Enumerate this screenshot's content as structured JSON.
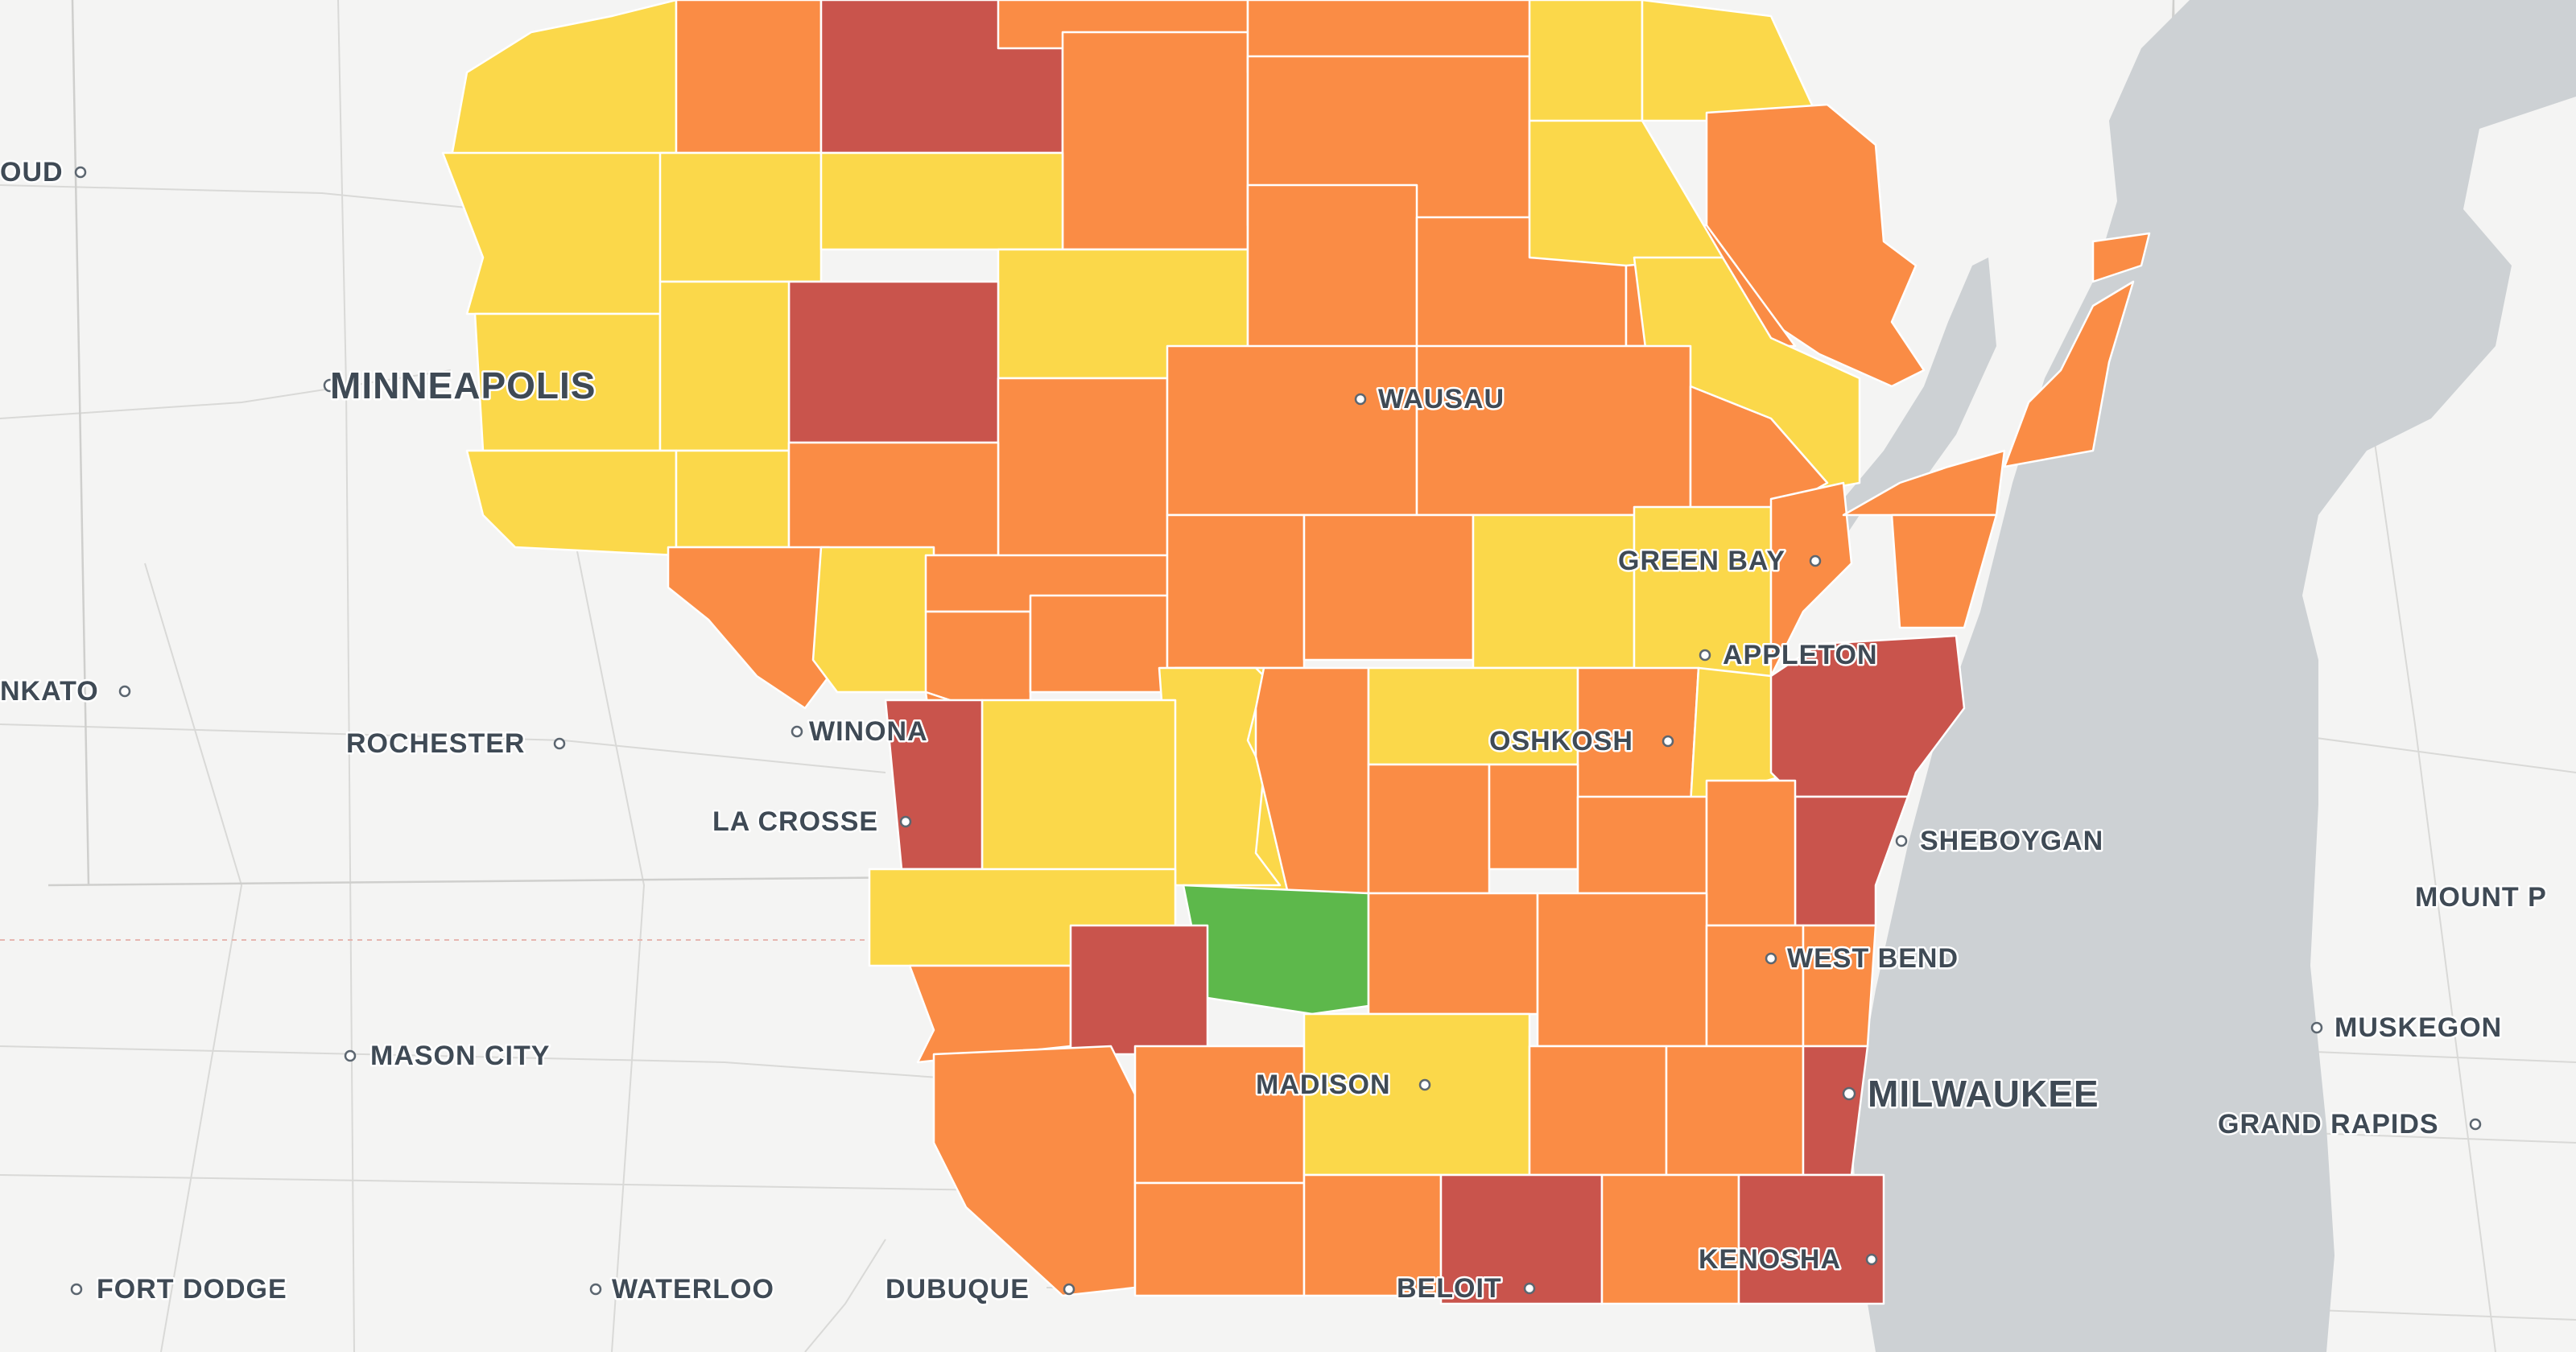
{
  "map": {
    "region": "Wisconsin",
    "colors": {
      "background": "#f4f4f3",
      "water": "#cdd1d4",
      "green": "#5db84b",
      "yellow": "#fbd84a",
      "orange": "#fa8c45",
      "red": "#c9544c"
    },
    "cities": [
      {
        "label": "OUD",
        "size": "small"
      },
      {
        "label": "MINNEAPOLIS",
        "size": "large"
      },
      {
        "label": "NKATO",
        "size": "small"
      },
      {
        "label": "ROCHESTER",
        "size": "small"
      },
      {
        "label": "WINONA",
        "size": "small"
      },
      {
        "label": "LA CROSSE",
        "size": "small"
      },
      {
        "label": "MASON CITY",
        "size": "small"
      },
      {
        "label": "FORT DODGE",
        "size": "small"
      },
      {
        "label": "WATERLOO",
        "size": "small"
      },
      {
        "label": "DUBUQUE",
        "size": "small"
      },
      {
        "label": "BELOIT",
        "size": "small"
      },
      {
        "label": "KENOSHA",
        "size": "small"
      },
      {
        "label": "MILWAUKEE",
        "size": "large"
      },
      {
        "label": "WEST BEND",
        "size": "small"
      },
      {
        "label": "SHEBOYGAN",
        "size": "small"
      },
      {
        "label": "OSHKOSH",
        "size": "small"
      },
      {
        "label": "APPLETON",
        "size": "small"
      },
      {
        "label": "GREEN BAY",
        "size": "small"
      },
      {
        "label": "WAUSAU",
        "size": "small"
      },
      {
        "label": "MADISON",
        "size": "small"
      },
      {
        "label": "MOUNT P",
        "size": "small"
      },
      {
        "label": "MUSKEGON",
        "size": "small"
      },
      {
        "label": "GRAND RAPIDS",
        "size": "small"
      }
    ]
  }
}
